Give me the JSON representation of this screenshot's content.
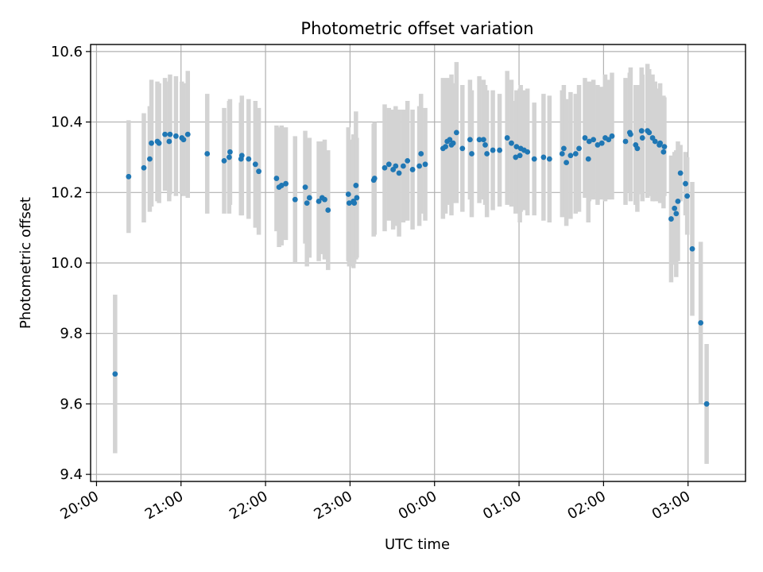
{
  "chart_data": {
    "type": "scatter",
    "title": "Photometric offset variation",
    "xlabel": "UTC time",
    "ylabel": "Photometric offset",
    "x_ticks": [
      "20:00",
      "21:00",
      "22:00",
      "23:00",
      "00:00",
      "01:00",
      "02:00",
      "03:00"
    ],
    "y_ticks": [
      "9.4",
      "9.6",
      "9.8",
      "10.0",
      "10.2",
      "10.4",
      "10.6"
    ],
    "xlim_hours": [
      19.93,
      27.68
    ],
    "ylim": [
      9.38,
      10.62
    ],
    "grid": true,
    "colors": {
      "points": "#1f77b4",
      "errorbars": "#d3d3d3",
      "grid": "#b0b0b0"
    },
    "series": [
      {
        "x_hours": [
          20.22,
          20.38,
          20.56,
          20.63,
          20.65,
          20.72,
          20.74,
          20.81,
          20.86,
          20.87,
          20.94,
          21.01,
          21.03,
          21.08,
          21.31,
          21.51,
          21.57,
          21.58,
          21.71,
          21.72,
          21.8,
          21.88,
          21.92,
          22.13,
          22.16,
          22.19,
          22.24,
          22.35,
          22.47,
          22.49,
          22.52,
          22.63,
          22.67,
          22.7,
          22.74,
          22.98,
          22.99,
          23.04,
          23.05,
          23.07,
          23.08,
          23.28,
          23.29,
          23.41,
          23.46,
          23.51,
          23.54,
          23.58,
          23.63,
          23.68,
          23.74,
          23.82,
          23.84,
          23.89,
          24.1,
          24.13,
          24.15,
          24.18,
          24.2,
          24.22,
          24.26,
          24.33,
          24.42,
          24.44,
          24.53,
          24.58,
          24.6,
          24.62,
          24.69,
          24.77,
          24.86,
          24.91,
          24.96,
          24.97,
          25.01,
          25.02,
          25.06,
          25.1,
          25.18,
          25.29,
          25.36,
          25.51,
          25.53,
          25.56,
          25.61,
          25.67,
          25.71,
          25.78,
          25.82,
          25.83,
          25.88,
          25.93,
          25.98,
          26.02,
          26.06,
          26.1,
          26.26,
          26.31,
          26.32,
          26.38,
          26.4,
          26.45,
          26.46,
          26.52,
          26.54,
          26.58,
          26.61,
          26.66,
          26.67,
          26.71,
          26.72,
          26.8,
          26.84,
          26.86,
          26.88,
          26.91,
          26.97,
          26.99,
          27.05,
          27.15,
          27.22
        ],
        "y": [
          9.685,
          10.245,
          10.27,
          10.295,
          10.34,
          10.345,
          10.34,
          10.365,
          10.345,
          10.365,
          10.36,
          10.355,
          10.35,
          10.365,
          10.31,
          10.29,
          10.3,
          10.315,
          10.295,
          10.305,
          10.295,
          10.28,
          10.26,
          10.24,
          10.215,
          10.22,
          10.225,
          10.18,
          10.215,
          10.17,
          10.185,
          10.175,
          10.185,
          10.18,
          10.15,
          10.195,
          10.17,
          10.175,
          10.17,
          10.22,
          10.185,
          10.235,
          10.24,
          10.27,
          10.28,
          10.265,
          10.275,
          10.255,
          10.275,
          10.29,
          10.265,
          10.275,
          10.31,
          10.28,
          10.325,
          10.33,
          10.345,
          10.35,
          10.335,
          10.34,
          10.37,
          10.325,
          10.35,
          10.31,
          10.35,
          10.35,
          10.335,
          10.31,
          10.32,
          10.32,
          10.355,
          10.34,
          10.3,
          10.33,
          10.305,
          10.325,
          10.32,
          10.315,
          10.295,
          10.3,
          10.295,
          10.31,
          10.325,
          10.285,
          10.305,
          10.31,
          10.325,
          10.355,
          10.295,
          10.345,
          10.35,
          10.335,
          10.34,
          10.355,
          10.35,
          10.36,
          10.345,
          10.37,
          10.365,
          10.335,
          10.325,
          10.375,
          10.355,
          10.375,
          10.37,
          10.355,
          10.345,
          10.335,
          10.34,
          10.315,
          10.33,
          10.125,
          10.155,
          10.14,
          10.175,
          10.255,
          10.225,
          10.19,
          10.04,
          9.83,
          9.6
        ],
        "err": [
          0.225,
          0.16,
          0.155,
          0.15,
          0.18,
          0.17,
          0.17,
          0.16,
          0.17,
          0.17,
          0.17,
          0.16,
          0.16,
          0.18,
          0.17,
          0.15,
          0.16,
          0.15,
          0.16,
          0.17,
          0.17,
          0.18,
          0.18,
          0.15,
          0.17,
          0.17,
          0.16,
          0.18,
          0.16,
          0.18,
          0.17,
          0.17,
          0.16,
          0.17,
          0.17,
          0.19,
          0.18,
          0.19,
          0.17,
          0.21,
          0.17,
          0.16,
          0.16,
          0.18,
          0.16,
          0.17,
          0.17,
          0.18,
          0.16,
          0.17,
          0.17,
          0.17,
          0.17,
          0.16,
          0.2,
          0.19,
          0.18,
          0.17,
          0.2,
          0.17,
          0.2,
          0.18,
          0.17,
          0.18,
          0.18,
          0.17,
          0.17,
          0.18,
          0.17,
          0.16,
          0.19,
          0.18,
          0.16,
          0.16,
          0.19,
          0.18,
          0.17,
          0.18,
          0.16,
          0.18,
          0.18,
          0.18,
          0.18,
          0.18,
          0.18,
          0.17,
          0.18,
          0.17,
          0.18,
          0.17,
          0.17,
          0.17,
          0.16,
          0.18,
          0.17,
          0.18,
          0.18,
          0.17,
          0.19,
          0.17,
          0.18,
          0.18,
          0.18,
          0.19,
          0.18,
          0.18,
          0.17,
          0.16,
          0.17,
          0.16,
          0.14,
          0.18,
          0.16,
          0.18,
          0.17,
          0.08,
          0.09,
          0.11,
          0.19,
          0.23,
          0.17
        ]
      }
    ]
  }
}
